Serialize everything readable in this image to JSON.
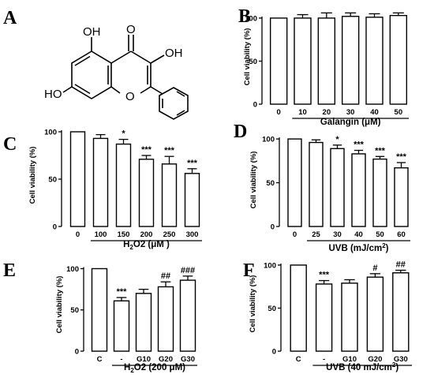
{
  "molecule": {
    "atoms": {
      "oh_top": "OH",
      "o_keto": "O",
      "oh_right": "OH",
      "ho_left": "HO",
      "o_ring": "O"
    }
  },
  "chart_data": [
    {
      "panel": "A",
      "type": "structure"
    },
    {
      "panel": "B",
      "type": "bar",
      "categories": [
        "0",
        "10",
        "20",
        "30",
        "40",
        "50"
      ],
      "values": [
        100,
        100,
        100,
        102,
        101,
        103
      ],
      "errors": [
        0,
        4,
        6,
        4,
        4,
        3
      ],
      "significance": [
        "",
        "",
        "",
        "",
        "",
        ""
      ],
      "ylabel": "Cell viability (%)",
      "xlabel": "Galangin (μM)",
      "ylim": [
        0,
        110
      ],
      "yticks": [
        "0",
        "50",
        "100"
      ]
    },
    {
      "panel": "C",
      "type": "bar",
      "categories": [
        "0",
        "100",
        "150",
        "200",
        "250",
        "300"
      ],
      "values": [
        100,
        93,
        87,
        71,
        66,
        56
      ],
      "errors": [
        0,
        4,
        5,
        4,
        8,
        5
      ],
      "significance": [
        "",
        "",
        "*",
        "***",
        "***",
        "***"
      ],
      "ylabel": "Cell viability (%)",
      "xlabel": "H2O2 (μM )",
      "ylim": [
        0,
        110
      ],
      "yticks": [
        "0",
        "50",
        "100"
      ]
    },
    {
      "panel": "D",
      "type": "bar",
      "categories": [
        "0",
        "25",
        "30",
        "40",
        "50",
        "60"
      ],
      "values": [
        100,
        96,
        89,
        83,
        77,
        67
      ],
      "errors": [
        0,
        3,
        4,
        4,
        3,
        6
      ],
      "significance": [
        "",
        "",
        "*",
        "***",
        "***",
        "***"
      ],
      "ylabel": "Cell viability (%)",
      "xlabel": "UVB (mJ/cm2)",
      "ylim": [
        0,
        110
      ],
      "yticks": [
        "0",
        "50",
        "100"
      ]
    },
    {
      "panel": "E",
      "type": "bar",
      "categories": [
        "C",
        "-",
        "G10",
        "G20",
        "G30"
      ],
      "values": [
        100,
        61,
        70,
        78,
        86
      ],
      "errors": [
        0,
        4,
        5,
        6,
        5
      ],
      "significance": [
        "",
        "***",
        "",
        "##",
        "###"
      ],
      "ylabel": "Cell viability (%)",
      "xlabel": "H2O2 (200 μM)",
      "ylim": [
        0,
        110
      ],
      "yticks": [
        "0",
        "50",
        "100"
      ]
    },
    {
      "panel": "F",
      "type": "bar",
      "categories": [
        "C",
        "-",
        "G10",
        "G20",
        "G30"
      ],
      "values": [
        100,
        78,
        79,
        86,
        91
      ],
      "errors": [
        0,
        4,
        4,
        4,
        3
      ],
      "significance": [
        "",
        "***",
        "",
        "#",
        "##"
      ],
      "ylabel": "Cell viability (%)",
      "xlabel": "UVB (40 mJ/cm2)",
      "ylim": [
        0,
        110
      ],
      "yticks": [
        "0",
        "50",
        "100"
      ]
    }
  ]
}
